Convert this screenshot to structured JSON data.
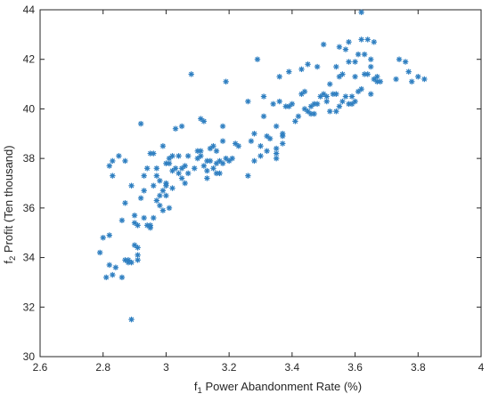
{
  "chart_data": {
    "type": "scatter",
    "title": "",
    "xlabel": {
      "symbol": "f",
      "subscript": "1",
      "text": " Power Abandonment Rate (%)"
    },
    "ylabel": {
      "symbol": "f",
      "subscript": "2",
      "text": " Profit (Ten thousand)"
    },
    "xlim": [
      2.6,
      4.0
    ],
    "ylim": [
      30,
      44
    ],
    "xticks": [
      "2.6",
      "2.8",
      "3",
      "3.2",
      "3.4",
      "3.6",
      "3.8",
      "4"
    ],
    "yticks": [
      "30",
      "32",
      "34",
      "36",
      "38",
      "40",
      "42",
      "44"
    ],
    "grid": false,
    "legend": "none",
    "marker": "asterisk",
    "color": "#2f7fc1",
    "series": [
      {
        "points": [
          [
            2.79,
            34.2
          ],
          [
            2.8,
            34.8
          ],
          [
            2.81,
            33.2
          ],
          [
            2.82,
            33.7
          ],
          [
            2.82,
            34.9
          ],
          [
            2.82,
            37.7
          ],
          [
            2.83,
            33.3
          ],
          [
            2.83,
            37.9
          ],
          [
            2.83,
            37.3
          ],
          [
            2.84,
            33.6
          ],
          [
            2.85,
            38.1
          ],
          [
            2.86,
            35.5
          ],
          [
            2.86,
            33.2
          ],
          [
            2.87,
            36.2
          ],
          [
            2.87,
            37.9
          ],
          [
            2.87,
            33.9
          ],
          [
            2.88,
            33.8
          ],
          [
            2.88,
            33.9
          ],
          [
            2.89,
            33.8
          ],
          [
            2.89,
            31.5
          ],
          [
            2.89,
            36.9
          ],
          [
            2.9,
            35.7
          ],
          [
            2.9,
            34.5
          ],
          [
            2.9,
            35.4
          ],
          [
            2.91,
            34.4
          ],
          [
            2.91,
            33.9
          ],
          [
            2.91,
            34.1
          ],
          [
            2.91,
            35.3
          ],
          [
            2.92,
            36.4
          ],
          [
            2.92,
            39.4
          ],
          [
            2.93,
            35.6
          ],
          [
            2.93,
            37.3
          ],
          [
            2.93,
            36.7
          ],
          [
            2.94,
            35.3
          ],
          [
            2.94,
            37.6
          ],
          [
            2.95,
            38.2
          ],
          [
            2.95,
            35.2
          ],
          [
            2.95,
            35.3
          ],
          [
            2.96,
            35.6
          ],
          [
            2.96,
            36.9
          ],
          [
            2.96,
            38.2
          ],
          [
            2.97,
            36.3
          ],
          [
            2.97,
            37.6
          ],
          [
            2.97,
            37.3
          ],
          [
            2.98,
            36.1
          ],
          [
            2.98,
            36.5
          ],
          [
            2.98,
            37.1
          ],
          [
            2.99,
            36.7
          ],
          [
            2.99,
            35.9
          ],
          [
            2.99,
            38.5
          ],
          [
            3.0,
            37.0
          ],
          [
            3.0,
            37.8
          ],
          [
            3.0,
            36.9
          ],
          [
            3.0,
            36.5
          ],
          [
            3.01,
            37.8
          ],
          [
            3.01,
            38.0
          ],
          [
            3.01,
            36.0
          ],
          [
            3.02,
            37.5
          ],
          [
            3.02,
            36.8
          ],
          [
            3.02,
            38.1
          ],
          [
            3.03,
            39.2
          ],
          [
            3.03,
            37.6
          ],
          [
            3.04,
            38.1
          ],
          [
            3.04,
            37.4
          ],
          [
            3.05,
            37.2
          ],
          [
            3.05,
            39.3
          ],
          [
            3.05,
            37.6
          ],
          [
            3.06,
            37.7
          ],
          [
            3.06,
            37.0
          ],
          [
            3.07,
            38.1
          ],
          [
            3.07,
            37.4
          ],
          [
            3.08,
            41.4
          ],
          [
            3.09,
            37.6
          ],
          [
            3.1,
            38.0
          ],
          [
            3.1,
            38.3
          ],
          [
            3.11,
            39.6
          ],
          [
            3.11,
            38.3
          ],
          [
            3.11,
            38.1
          ],
          [
            3.12,
            39.5
          ],
          [
            3.12,
            37.7
          ],
          [
            3.13,
            37.5
          ],
          [
            3.13,
            37.9
          ],
          [
            3.13,
            37.2
          ],
          [
            3.14,
            38.4
          ],
          [
            3.14,
            37.9
          ],
          [
            3.15,
            38.5
          ],
          [
            3.15,
            37.6
          ],
          [
            3.16,
            37.4
          ],
          [
            3.16,
            38.3
          ],
          [
            3.16,
            37.8
          ],
          [
            3.17,
            37.4
          ],
          [
            3.17,
            37.9
          ],
          [
            3.18,
            39.3
          ],
          [
            3.18,
            38.7
          ],
          [
            3.18,
            37.8
          ],
          [
            3.19,
            38.0
          ],
          [
            3.19,
            41.1
          ],
          [
            3.2,
            37.9
          ],
          [
            3.21,
            38.0
          ],
          [
            3.22,
            38.6
          ],
          [
            3.23,
            38.5
          ],
          [
            3.26,
            37.3
          ],
          [
            3.26,
            40.3
          ],
          [
            3.27,
            38.7
          ],
          [
            3.28,
            37.9
          ],
          [
            3.28,
            39.0
          ],
          [
            3.29,
            42.0
          ],
          [
            3.3,
            38.1
          ],
          [
            3.3,
            38.5
          ],
          [
            3.31,
            40.5
          ],
          [
            3.31,
            39.7
          ],
          [
            3.32,
            38.9
          ],
          [
            3.32,
            38.3
          ],
          [
            3.33,
            38.8
          ],
          [
            3.34,
            40.2
          ],
          [
            3.35,
            38.2
          ],
          [
            3.35,
            38.0
          ],
          [
            3.35,
            39.3
          ],
          [
            3.35,
            38.4
          ],
          [
            3.36,
            40.3
          ],
          [
            3.36,
            41.3
          ],
          [
            3.37,
            39.0
          ],
          [
            3.37,
            38.6
          ],
          [
            3.37,
            38.9
          ],
          [
            3.38,
            40.1
          ],
          [
            3.39,
            41.5
          ],
          [
            3.39,
            40.1
          ],
          [
            3.4,
            40.2
          ],
          [
            3.41,
            39.5
          ],
          [
            3.42,
            39.7
          ],
          [
            3.43,
            41.6
          ],
          [
            3.43,
            40.6
          ],
          [
            3.44,
            40.0
          ],
          [
            3.44,
            40.7
          ],
          [
            3.45,
            39.9
          ],
          [
            3.45,
            41.8
          ],
          [
            3.46,
            40.1
          ],
          [
            3.46,
            39.8
          ],
          [
            3.47,
            39.8
          ],
          [
            3.47,
            40.2
          ],
          [
            3.48,
            41.7
          ],
          [
            3.48,
            40.2
          ],
          [
            3.49,
            40.5
          ],
          [
            3.5,
            40.6
          ],
          [
            3.5,
            42.6
          ],
          [
            3.51,
            40.3
          ],
          [
            3.51,
            40.5
          ],
          [
            3.52,
            41.0
          ],
          [
            3.52,
            39.9
          ],
          [
            3.53,
            40.6
          ],
          [
            3.54,
            41.7
          ],
          [
            3.54,
            40.6
          ],
          [
            3.54,
            39.9
          ],
          [
            3.55,
            40.1
          ],
          [
            3.55,
            42.5
          ],
          [
            3.55,
            41.3
          ],
          [
            3.56,
            40.3
          ],
          [
            3.56,
            41.4
          ],
          [
            3.57,
            40.5
          ],
          [
            3.57,
            42.4
          ],
          [
            3.58,
            42.7
          ],
          [
            3.58,
            40.2
          ],
          [
            3.58,
            41.9
          ],
          [
            3.59,
            40.5
          ],
          [
            3.59,
            40.2
          ],
          [
            3.6,
            41.3
          ],
          [
            3.6,
            41.9
          ],
          [
            3.6,
            40.3
          ],
          [
            3.61,
            40.7
          ],
          [
            3.61,
            42.2
          ],
          [
            3.62,
            43.9
          ],
          [
            3.62,
            40.8
          ],
          [
            3.62,
            42.8
          ],
          [
            3.63,
            41.4
          ],
          [
            3.63,
            42.2
          ],
          [
            3.64,
            42.8
          ],
          [
            3.64,
            41.4
          ],
          [
            3.65,
            40.6
          ],
          [
            3.65,
            42.0
          ],
          [
            3.65,
            41.7
          ],
          [
            3.66,
            42.7
          ],
          [
            3.66,
            41.2
          ],
          [
            3.67,
            41.3
          ],
          [
            3.67,
            41.1
          ],
          [
            3.68,
            41.1
          ],
          [
            3.73,
            41.2
          ],
          [
            3.74,
            42.0
          ],
          [
            3.76,
            41.9
          ],
          [
            3.77,
            41.5
          ],
          [
            3.78,
            41.1
          ],
          [
            3.8,
            41.3
          ],
          [
            3.82,
            41.2
          ]
        ]
      }
    ]
  }
}
